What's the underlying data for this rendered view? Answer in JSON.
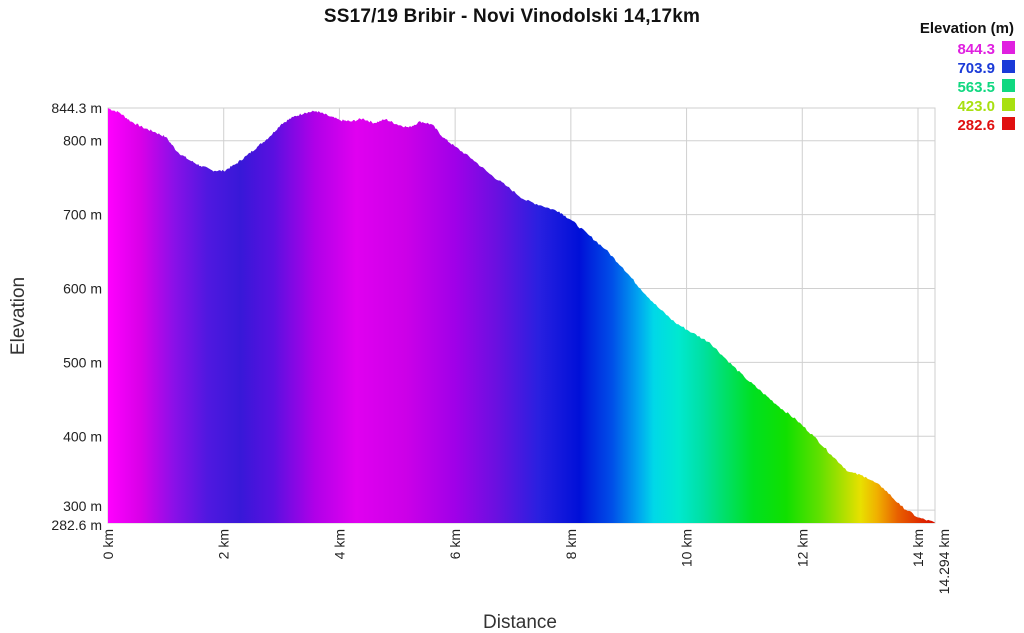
{
  "chart_data": {
    "type": "area",
    "title": "SS17/19 Bribir - Novi Vinodolski 14,17km",
    "xlabel": "Distance",
    "ylabel": "Elevation",
    "x_unit": "km",
    "y_unit": "m",
    "xlim": [
      0,
      14.294
    ],
    "ylim": [
      282.6,
      844.3
    ],
    "x_ticks": [
      "0 km",
      "2 km",
      "4 km",
      "6 km",
      "8 km",
      "10 km",
      "12 km",
      "14 km",
      "14.294 km"
    ],
    "y_ticks": [
      "282.6 m",
      "300 m",
      "400 m",
      "500 m",
      "600 m",
      "700 m",
      "800 m",
      "844.3 m"
    ],
    "grid": true,
    "legend_position": "top-right",
    "legend": {
      "title": "Elevation (m)",
      "entries": [
        {
          "label": "844.3",
          "color": "#e020e0"
        },
        {
          "label": "703.9",
          "color": "#1a3ad8"
        },
        {
          "label": "563.5",
          "color": "#10d880"
        },
        {
          "label": "423.0",
          "color": "#a8e010"
        },
        {
          "label": "282.6",
          "color": "#e01010"
        }
      ]
    },
    "series": [
      {
        "x": [
          0,
          0.2,
          0.4,
          0.6,
          0.8,
          1.0,
          1.2,
          1.4,
          1.6,
          1.8,
          2.0,
          2.2,
          2.4,
          2.6,
          2.8,
          3.0,
          3.2,
          3.4,
          3.6,
          3.8,
          4.0,
          4.2,
          4.4,
          4.6,
          4.8,
          5.0,
          5.2,
          5.4,
          5.6,
          5.8,
          6.0,
          6.3,
          6.6,
          6.9,
          7.2,
          7.5,
          7.8,
          8.0,
          8.3,
          8.6,
          8.9,
          9.2,
          9.5,
          9.8,
          10.1,
          10.4,
          10.7,
          11.0,
          11.3,
          11.6,
          11.9,
          12.2,
          12.5,
          12.8,
          13.1,
          13.4,
          13.7,
          14.0,
          14.294
        ],
        "y": [
          844,
          838,
          826,
          818,
          812,
          805,
          785,
          774,
          766,
          760,
          759,
          768,
          780,
          793,
          806,
          823,
          832,
          838,
          840,
          834,
          828,
          826,
          830,
          824,
          829,
          822,
          818,
          826,
          822,
          804,
          792,
          775,
          755,
          738,
          720,
          712,
          704,
          693,
          673,
          653,
          628,
          600,
          575,
          554,
          540,
          527,
          503,
          480,
          460,
          440,
          422,
          400,
          375,
          352,
          345,
          330,
          306,
          290,
          283
        ]
      }
    ]
  }
}
